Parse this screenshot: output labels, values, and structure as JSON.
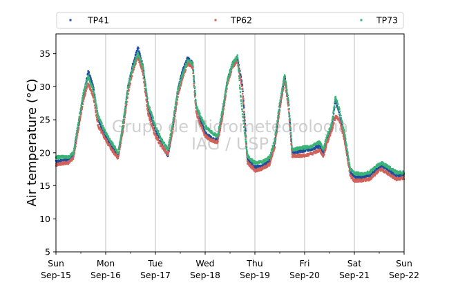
{
  "chart_data": {
    "type": "scatter",
    "title": "",
    "xlabel": "",
    "ylabel": "Air temperature (°C)",
    "ylim": [
      5,
      38
    ],
    "xlim_days": [
      0,
      7
    ],
    "x_unit": "days",
    "yticks": [
      5,
      10,
      15,
      20,
      25,
      30,
      35
    ],
    "xticks": [
      {
        "day": 0,
        "line1": "Sun",
        "line2": "Sep-15"
      },
      {
        "day": 1,
        "line1": "Mon",
        "line2": "Sep-16"
      },
      {
        "day": 2,
        "line1": "Tue",
        "line2": "Sep-17"
      },
      {
        "day": 3,
        "line1": "Wed",
        "line2": "Sep-18"
      },
      {
        "day": 4,
        "line1": "Thu",
        "line2": "Sep-19"
      },
      {
        "day": 5,
        "line1": "Fri",
        "line2": "Sep-20"
      },
      {
        "day": 6,
        "line1": "Sat",
        "line2": "Sep-21"
      },
      {
        "day": 7,
        "line1": "Sun",
        "line2": "Sep-22"
      }
    ],
    "grid": "vertical",
    "legend_position": "top",
    "watermark": [
      "Grupo de Micrometeorologia",
      "IAG / USP"
    ],
    "series": [
      {
        "name": "TP41",
        "color": "#1f4e9c",
        "points": [
          [
            0,
            18.6
          ],
          [
            0.12,
            18.8
          ],
          [
            0.25,
            18.9
          ],
          [
            0.35,
            19.6
          ],
          [
            0.45,
            24.0
          ],
          [
            0.55,
            28.5
          ],
          [
            0.65,
            32.3
          ],
          [
            0.75,
            30.0
          ],
          [
            0.85,
            25.0
          ],
          [
            1.0,
            22.5
          ],
          [
            1.12,
            21.0
          ],
          [
            1.25,
            19.5
          ],
          [
            1.35,
            24.0
          ],
          [
            1.45,
            30.0
          ],
          [
            1.55,
            33.5
          ],
          [
            1.65,
            36.0
          ],
          [
            1.75,
            33.0
          ],
          [
            1.85,
            27.0
          ],
          [
            2.0,
            23.5
          ],
          [
            2.12,
            21.5
          ],
          [
            2.25,
            19.4
          ],
          [
            2.35,
            24.0
          ],
          [
            2.45,
            29.5
          ],
          [
            2.55,
            32.5
          ],
          [
            2.65,
            34.4
          ],
          [
            2.75,
            33.5
          ],
          [
            2.82,
            27.0
          ],
          [
            3.0,
            23.0
          ],
          [
            3.15,
            22.0
          ],
          [
            3.25,
            22.0
          ],
          [
            3.35,
            26.0
          ],
          [
            3.45,
            31.0
          ],
          [
            3.55,
            33.5
          ],
          [
            3.65,
            34.3
          ],
          [
            3.75,
            30.0
          ],
          [
            3.85,
            19.0
          ],
          [
            4.0,
            17.8
          ],
          [
            4.15,
            18.0
          ],
          [
            4.3,
            18.8
          ],
          [
            4.4,
            21.5
          ],
          [
            4.5,
            27.0
          ],
          [
            4.6,
            31.5
          ],
          [
            4.68,
            27.0
          ],
          [
            4.75,
            20.0
          ],
          [
            5.0,
            20.4
          ],
          [
            5.15,
            20.6
          ],
          [
            5.3,
            21.0
          ],
          [
            5.38,
            20.0
          ],
          [
            5.45,
            22.0
          ],
          [
            5.55,
            24.0
          ],
          [
            5.62,
            28.0
          ],
          [
            5.7,
            26.0
          ],
          [
            5.8,
            22.5
          ],
          [
            5.92,
            17.0
          ],
          [
            6.0,
            16.4
          ],
          [
            6.15,
            16.3
          ],
          [
            6.3,
            16.5
          ],
          [
            6.45,
            17.5
          ],
          [
            6.55,
            18.0
          ],
          [
            6.65,
            17.6
          ],
          [
            6.75,
            17.0
          ],
          [
            6.85,
            16.5
          ],
          [
            7.0,
            16.6
          ]
        ]
      },
      {
        "name": "TP62",
        "color": "#d0625b",
        "points": [
          [
            0,
            18.2
          ],
          [
            0.12,
            18.4
          ],
          [
            0.25,
            18.5
          ],
          [
            0.35,
            19.2
          ],
          [
            0.45,
            23.5
          ],
          [
            0.55,
            28.0
          ],
          [
            0.65,
            30.5
          ],
          [
            0.75,
            28.5
          ],
          [
            0.85,
            24.0
          ],
          [
            1.0,
            22.0
          ],
          [
            1.12,
            20.5
          ],
          [
            1.25,
            19.2
          ],
          [
            1.35,
            23.5
          ],
          [
            1.45,
            29.0
          ],
          [
            1.55,
            32.5
          ],
          [
            1.65,
            34.5
          ],
          [
            1.75,
            32.0
          ],
          [
            1.85,
            26.0
          ],
          [
            2.0,
            22.5
          ],
          [
            2.12,
            21.0
          ],
          [
            2.25,
            19.8
          ],
          [
            2.35,
            23.5
          ],
          [
            2.45,
            28.5
          ],
          [
            2.55,
            31.5
          ],
          [
            2.65,
            33.6
          ],
          [
            2.75,
            32.8
          ],
          [
            2.82,
            26.0
          ],
          [
            3.0,
            22.5
          ],
          [
            3.15,
            21.8
          ],
          [
            3.25,
            21.6
          ],
          [
            3.35,
            25.5
          ],
          [
            3.45,
            30.5
          ],
          [
            3.55,
            33.0
          ],
          [
            3.65,
            33.8
          ],
          [
            3.75,
            29.5
          ],
          [
            3.85,
            18.5
          ],
          [
            4.0,
            17.3
          ],
          [
            4.15,
            17.6
          ],
          [
            4.3,
            18.3
          ],
          [
            4.4,
            21.0
          ],
          [
            4.5,
            26.5
          ],
          [
            4.6,
            31.0
          ],
          [
            4.68,
            26.5
          ],
          [
            4.75,
            19.5
          ],
          [
            5.0,
            19.6
          ],
          [
            5.15,
            19.9
          ],
          [
            5.3,
            20.4
          ],
          [
            5.38,
            19.5
          ],
          [
            5.45,
            21.5
          ],
          [
            5.55,
            23.5
          ],
          [
            5.62,
            25.5
          ],
          [
            5.7,
            25.0
          ],
          [
            5.8,
            22.0
          ],
          [
            5.92,
            16.5
          ],
          [
            6.0,
            15.8
          ],
          [
            6.15,
            15.8
          ],
          [
            6.3,
            16.0
          ],
          [
            6.45,
            17.0
          ],
          [
            6.55,
            17.5
          ],
          [
            6.65,
            17.0
          ],
          [
            6.75,
            16.5
          ],
          [
            6.85,
            16.0
          ],
          [
            7.0,
            16.2
          ]
        ]
      },
      {
        "name": "TP73",
        "color": "#3bb278",
        "points": [
          [
            0,
            19.3
          ],
          [
            0.12,
            19.4
          ],
          [
            0.25,
            19.3
          ],
          [
            0.35,
            20.0
          ],
          [
            0.45,
            24.5
          ],
          [
            0.55,
            29.0
          ],
          [
            0.65,
            31.5
          ],
          [
            0.75,
            29.5
          ],
          [
            0.85,
            25.5
          ],
          [
            1.0,
            23.0
          ],
          [
            1.12,
            21.5
          ],
          [
            1.25,
            20.0
          ],
          [
            1.35,
            24.5
          ],
          [
            1.45,
            30.0
          ],
          [
            1.55,
            33.0
          ],
          [
            1.65,
            35.0
          ],
          [
            1.75,
            33.0
          ],
          [
            1.85,
            27.5
          ],
          [
            2.0,
            24.0
          ],
          [
            2.12,
            22.0
          ],
          [
            2.25,
            20.5
          ],
          [
            2.35,
            24.5
          ],
          [
            2.45,
            29.5
          ],
          [
            2.55,
            32.0
          ],
          [
            2.65,
            34.0
          ],
          [
            2.75,
            33.5
          ],
          [
            2.82,
            27.0
          ],
          [
            3.0,
            24.0
          ],
          [
            3.15,
            23.0
          ],
          [
            3.25,
            22.5
          ],
          [
            3.35,
            26.5
          ],
          [
            3.45,
            31.0
          ],
          [
            3.55,
            33.5
          ],
          [
            3.65,
            34.6
          ],
          [
            3.72,
            28.0
          ],
          [
            3.85,
            19.5
          ],
          [
            4.0,
            18.5
          ],
          [
            4.15,
            18.6
          ],
          [
            4.3,
            19.3
          ],
          [
            4.4,
            22.0
          ],
          [
            4.5,
            27.5
          ],
          [
            4.6,
            31.8
          ],
          [
            4.68,
            27.5
          ],
          [
            4.75,
            20.5
          ],
          [
            5.0,
            20.8
          ],
          [
            5.15,
            21.0
          ],
          [
            5.3,
            21.6
          ],
          [
            5.38,
            20.5
          ],
          [
            5.45,
            22.5
          ],
          [
            5.55,
            24.5
          ],
          [
            5.62,
            28.5
          ],
          [
            5.7,
            26.5
          ],
          [
            5.8,
            23.0
          ],
          [
            5.92,
            17.5
          ],
          [
            6.0,
            16.9
          ],
          [
            6.15,
            16.8
          ],
          [
            6.3,
            17.0
          ],
          [
            6.45,
            18.0
          ],
          [
            6.55,
            18.5
          ],
          [
            6.65,
            18.0
          ],
          [
            6.75,
            17.5
          ],
          [
            6.85,
            17.0
          ],
          [
            7.0,
            17.0
          ]
        ]
      }
    ]
  }
}
